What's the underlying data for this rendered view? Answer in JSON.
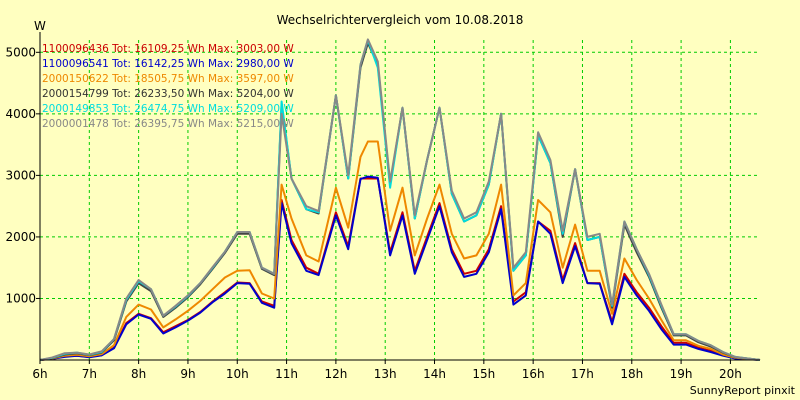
{
  "chart_data": {
    "type": "line",
    "title": "Wechselrichtervergleich vom 10.08.2018",
    "ylabel": "W",
    "credit": "SunnyReport pinxit",
    "xlim": [
      6,
      20.6
    ],
    "ylim": [
      0,
      5200
    ],
    "yticks": [
      1000,
      2000,
      3000,
      4000,
      5000
    ],
    "xticks": [
      "6h",
      "7h",
      "8h",
      "9h",
      "10h",
      "11h",
      "12h",
      "13h",
      "14h",
      "15h",
      "16h",
      "17h",
      "18h",
      "19h",
      "20h"
    ],
    "x": [
      6.0,
      6.25,
      6.5,
      6.75,
      7.0,
      7.25,
      7.5,
      7.75,
      8.0,
      8.25,
      8.5,
      8.75,
      9.0,
      9.25,
      9.5,
      9.75,
      10.0,
      10.25,
      10.5,
      10.75,
      10.9,
      11.1,
      11.4,
      11.65,
      12.0,
      12.25,
      12.5,
      12.65,
      12.85,
      13.1,
      13.35,
      13.6,
      13.85,
      14.1,
      14.35,
      14.6,
      14.85,
      15.1,
      15.35,
      15.6,
      15.85,
      16.1,
      16.35,
      16.6,
      16.85,
      17.1,
      17.35,
      17.6,
      17.85,
      18.1,
      18.35,
      18.6,
      18.85,
      19.1,
      19.35,
      19.6,
      19.85,
      20.1,
      20.35,
      20.6
    ],
    "series": [
      {
        "name": "1100096436",
        "color": "#cc0000",
        "values": [
          0,
          20,
          60,
          70,
          50,
          80,
          200,
          600,
          750,
          680,
          450,
          550,
          650,
          780,
          950,
          1100,
          1260,
          1250,
          950,
          880,
          2600,
          1950,
          1500,
          1400,
          2400,
          1850,
          2950,
          2950,
          2950,
          1750,
          2400,
          1450,
          2000,
          2550,
          1800,
          1400,
          1450,
          1800,
          2500,
          950,
          1100,
          2250,
          2100,
          1300,
          1900,
          1250,
          1250,
          620,
          1400,
          1100,
          850,
          550,
          280,
          280,
          200,
          150,
          80,
          30,
          20,
          0
        ]
      },
      {
        "name": "1100096541",
        "color": "#0000cc",
        "values": [
          0,
          20,
          50,
          70,
          45,
          75,
          190,
          580,
          740,
          670,
          430,
          530,
          640,
          770,
          940,
          1080,
          1250,
          1240,
          930,
          850,
          2550,
          1900,
          1450,
          1380,
          2350,
          1800,
          2940,
          2980,
          2960,
          1700,
          2350,
          1400,
          1950,
          2500,
          1750,
          1350,
          1400,
          1750,
          2450,
          900,
          1050,
          2250,
          2050,
          1250,
          1850,
          1250,
          1240,
          580,
          1350,
          1050,
          800,
          500,
          250,
          250,
          180,
          130,
          70,
          25,
          15,
          0
        ]
      },
      {
        "name": "2000150622",
        "color": "#ee8800",
        "values": [
          0,
          25,
          70,
          85,
          60,
          95,
          240,
          700,
          900,
          820,
          530,
          660,
          800,
          960,
          1150,
          1340,
          1450,
          1460,
          1080,
          1000,
          2850,
          2300,
          1700,
          1600,
          2800,
          2150,
          3300,
          3550,
          3550,
          2100,
          2800,
          1700,
          2300,
          2850,
          2050,
          1650,
          1700,
          2050,
          2850,
          1050,
          1250,
          2600,
          2400,
          1500,
          2200,
          1450,
          1450,
          750,
          1650,
          1300,
          1000,
          650,
          320,
          320,
          230,
          180,
          90,
          35,
          20,
          0
        ]
      },
      {
        "name": "2000154799",
        "color": "#444444",
        "values": [
          0,
          30,
          90,
          110,
          80,
          120,
          320,
          950,
          1250,
          1120,
          700,
          850,
          1020,
          1230,
          1480,
          1740,
          2050,
          2050,
          1480,
          1380,
          4150,
          2950,
          2450,
          2380,
          4300,
          2950,
          4750,
          5150,
          4800,
          2850,
          4100,
          2300,
          3250,
          4100,
          2700,
          2250,
          2350,
          2850,
          4000,
          1450,
          1700,
          3650,
          3200,
          2000,
          3100,
          1950,
          2000,
          850,
          2200,
          1750,
          1350,
          850,
          400,
          400,
          290,
          220,
          120,
          45,
          25,
          0
        ]
      },
      {
        "name": "2000149853",
        "color": "#00dddd",
        "values": [
          0,
          35,
          100,
          120,
          85,
          130,
          340,
          980,
          1280,
          1150,
          720,
          870,
          1040,
          1250,
          1500,
          1760,
          2080,
          2080,
          1500,
          1400,
          4200,
          2950,
          2450,
          2400,
          4300,
          2950,
          4800,
          5200,
          4750,
          2800,
          4100,
          2300,
          3250,
          4100,
          2700,
          2250,
          2350,
          2850,
          4000,
          1450,
          1700,
          3650,
          3200,
          2050,
          3100,
          1950,
          2000,
          880,
          2250,
          1800,
          1380,
          880,
          420,
          420,
          310,
          240,
          130,
          50,
          25,
          0
        ]
      },
      {
        "name": "2000001478",
        "color": "#888888",
        "values": [
          0,
          40,
          110,
          120,
          90,
          140,
          340,
          1000,
          1300,
          1150,
          720,
          880,
          1050,
          1250,
          1510,
          1760,
          2080,
          2080,
          1500,
          1400,
          4000,
          2950,
          2500,
          2420,
          4300,
          3000,
          4800,
          5210,
          4850,
          2900,
          4100,
          2350,
          3250,
          4100,
          2750,
          2300,
          2400,
          2900,
          4000,
          1500,
          1750,
          3700,
          3250,
          2100,
          3100,
          2000,
          2050,
          900,
          2250,
          1800,
          1400,
          900,
          420,
          420,
          310,
          240,
          130,
          50,
          25,
          0
        ]
      }
    ],
    "legend": [
      {
        "text": "1100096436 Tot: 16109,25 Wh Max: 3003,00 W",
        "color": "#cc0000"
      },
      {
        "text": "1100096541 Tot: 16142,25 Wh Max: 2980,00 W",
        "color": "#0000cc"
      },
      {
        "text": "2000150622 Tot: 18505,75 Wh Max: 3597,00 W",
        "color": "#ee8800"
      },
      {
        "text": "2000154799 Tot: 26233,50 Wh Max: 5204,00 W",
        "color": "#333333"
      },
      {
        "text": "2000149853 Tot: 26474,75 Wh Max: 5209,00 W",
        "color": "#00dddd"
      },
      {
        "text": "2000001478 Tot: 26395,75 Wh Max: 5215,00 W",
        "color": "#888888"
      }
    ]
  }
}
